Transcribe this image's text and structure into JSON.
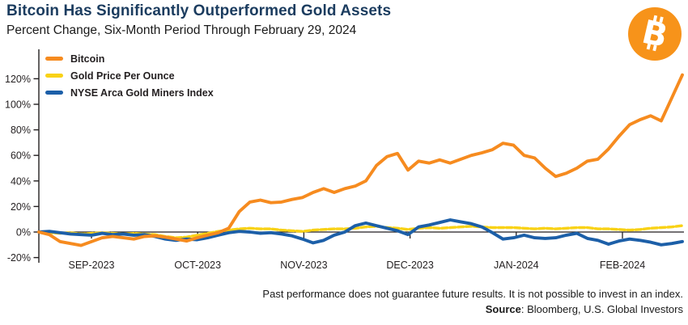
{
  "chart_data": {
    "type": "line",
    "title": "Bitcoin Has Significantly Outperformed Gold Assets",
    "subtitle": "Percent Change, Six-Month Period Through February 29, 2024",
    "x_ticks": [
      "SEP-2023",
      "OCT-2023",
      "NOV-2023",
      "DEC-2023",
      "JAN-2024",
      "FEB-2024"
    ],
    "y_ticks_pct": [
      -20,
      0,
      20,
      40,
      60,
      80,
      100,
      120
    ],
    "y_tick_suffix": "%",
    "x_range_days": [
      0,
      183
    ],
    "day_step": 3,
    "ylim": [
      -25,
      128
    ],
    "grid": false,
    "legend_position": "top-left",
    "axis_color": "#231f20",
    "series": [
      {
        "name": "Bitcoin",
        "color": "#F68B1F",
        "style": "solid",
        "values": [
          0,
          -2,
          -7.5,
          -9,
          -10.5,
          -7.5,
          -4.5,
          -3.5,
          -4.5,
          -5.5,
          -3.5,
          -3,
          -4,
          -5.5,
          -7,
          -4.5,
          -2.5,
          -0.5,
          3,
          16,
          23.5,
          25,
          23,
          23.5,
          25.5,
          27,
          31,
          34,
          31,
          34,
          36,
          40,
          52,
          59,
          61.5,
          48.5,
          55.5,
          54,
          56.5,
          54,
          57,
          60,
          62,
          64.5,
          69.5,
          68,
          60,
          58,
          50,
          43.5,
          46,
          50,
          55.5,
          57,
          65,
          75,
          84,
          88,
          91,
          87,
          105,
          123
        ]
      },
      {
        "name": "Gold Price Per Ounce",
        "color": "#F9D216",
        "style": "dashed",
        "values": [
          0,
          -0.5,
          -1,
          -0.5,
          -1.5,
          -1,
          -0.5,
          -1,
          -1.5,
          -1,
          -1.5,
          -2,
          -3.5,
          -4.5,
          -4,
          -2.5,
          -1,
          0.5,
          1.5,
          2.5,
          3,
          2.5,
          2.5,
          1.5,
          1,
          0.5,
          1.5,
          2,
          2.5,
          2.5,
          3,
          4,
          4.5,
          3.5,
          3,
          2,
          3,
          3.5,
          3,
          3.5,
          4,
          4.5,
          4,
          3.5,
          3.5,
          3.5,
          3,
          2.5,
          3,
          2.5,
          3,
          3.5,
          3.5,
          2.5,
          2.5,
          2,
          1.5,
          2,
          3,
          3.5,
          4,
          5
        ]
      },
      {
        "name": "NYSE Arca Gold Miners Index",
        "color": "#1C5FA8",
        "style": "solid",
        "values": [
          0,
          0.5,
          -0.5,
          -1.5,
          -2,
          -2.5,
          -1,
          -2,
          -1.5,
          -2.5,
          -2,
          -3.5,
          -5.5,
          -6.5,
          -5.5,
          -6,
          -4.5,
          -2.5,
          -0.5,
          0.5,
          0,
          -1,
          -0.5,
          -1.5,
          -3,
          -5.5,
          -8.5,
          -6.5,
          -2.5,
          0,
          5,
          7,
          5,
          3,
          1,
          -2,
          4,
          5.5,
          7.5,
          9.5,
          8,
          6.5,
          4,
          -0.5,
          -5.5,
          -4.5,
          -2.5,
          -4.5,
          -5,
          -4.5,
          -2.5,
          -1,
          -5,
          -6.5,
          -9.5,
          -7,
          -5.5,
          -6.5,
          -8,
          -10,
          -9,
          -7.5
        ]
      }
    ]
  },
  "logo": {
    "symbol": "B",
    "color": "#F7931A"
  },
  "footer": {
    "disclaimer": "Past performance does not guarantee future results. It is not possible to invest in an index.",
    "source_label": "Source",
    "source_text": ": Bloomberg, U.S. Global Investors"
  }
}
